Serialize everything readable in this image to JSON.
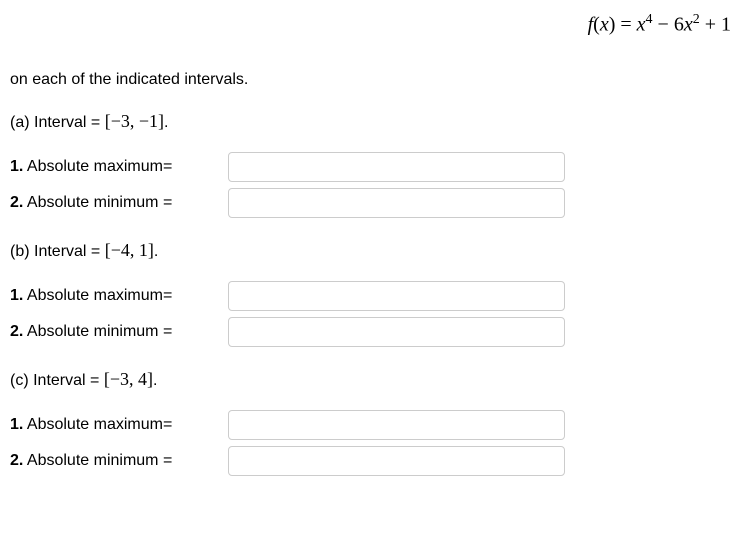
{
  "function": {
    "prefix": "f",
    "var_open": "(",
    "variable": "x",
    "var_close": ") = ",
    "term1_base": "x",
    "term1_exp": "4",
    "minus": " − 6",
    "term2_base": "x",
    "term2_exp": "2",
    "plus": " + 1"
  },
  "instruction": "on each of the indicated intervals.",
  "sections": [
    {
      "label_prefix": "(a) Interval = ",
      "bracket_open": "[",
      "interval": "−3, −1",
      "bracket_close": "]",
      "period": ".",
      "rows": [
        {
          "num": "1.",
          "label": "  Absolute maximum=",
          "value": ""
        },
        {
          "num": "2.",
          "label": "  Absolute minimum =",
          "value": ""
        }
      ]
    },
    {
      "label_prefix": "(b) Interval = ",
      "bracket_open": "[",
      "interval": "−4, 1",
      "bracket_close": "]",
      "period": ".",
      "rows": [
        {
          "num": "1.",
          "label": "  Absolute maximum=",
          "value": ""
        },
        {
          "num": "2.",
          "label": "  Absolute minimum =",
          "value": ""
        }
      ]
    },
    {
      "label_prefix": "(c) Interval = ",
      "bracket_open": "[",
      "interval": "−3, 4",
      "bracket_close": "]",
      "period": ".",
      "rows": [
        {
          "num": "1.",
          "label": "  Absolute maximum=",
          "value": ""
        },
        {
          "num": "2.",
          "label": "  Absolute minimum =",
          "value": ""
        }
      ]
    }
  ]
}
